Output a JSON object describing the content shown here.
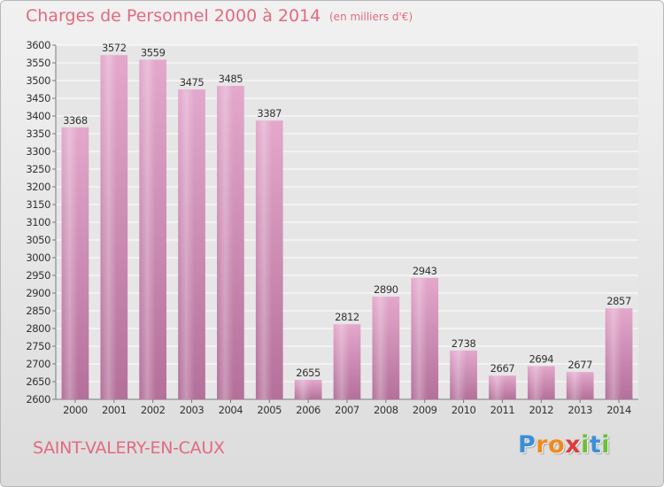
{
  "title": "Charges de Personnel 2000 à 2014",
  "subtitle": "(en milliers d'€)",
  "location": "SAINT-VALERY-EN-CAUX",
  "brand": {
    "letters": [
      "P",
      "r",
      "o",
      "x",
      "i",
      "t",
      "i"
    ],
    "colors": [
      "#3a8fd6",
      "#f08a1e",
      "#f08a1e",
      "#e23a3a",
      "#6bbf3a",
      "#3a8fd6",
      "#6bbf3a"
    ]
  },
  "colors": {
    "title": "#e36a7f",
    "bar_top": "#e3a8cc",
    "bar_bottom": "#b4709a",
    "grid": "#ffffff"
  },
  "chart_data": {
    "type": "bar",
    "categories": [
      "2000",
      "2001",
      "2002",
      "2003",
      "2004",
      "2005",
      "2006",
      "2007",
      "2008",
      "2009",
      "2010",
      "2011",
      "2012",
      "2013",
      "2014"
    ],
    "values": [
      3368,
      3572,
      3559,
      3475,
      3485,
      3387,
      2655,
      2812,
      2890,
      2943,
      2738,
      2667,
      2694,
      2677,
      2857
    ],
    "title": "Charges de Personnel 2000 à 2014",
    "xlabel": "",
    "ylabel": "",
    "ylim": [
      2600,
      3600
    ],
    "ytick_step": 50,
    "grid": true,
    "legend": "none"
  }
}
